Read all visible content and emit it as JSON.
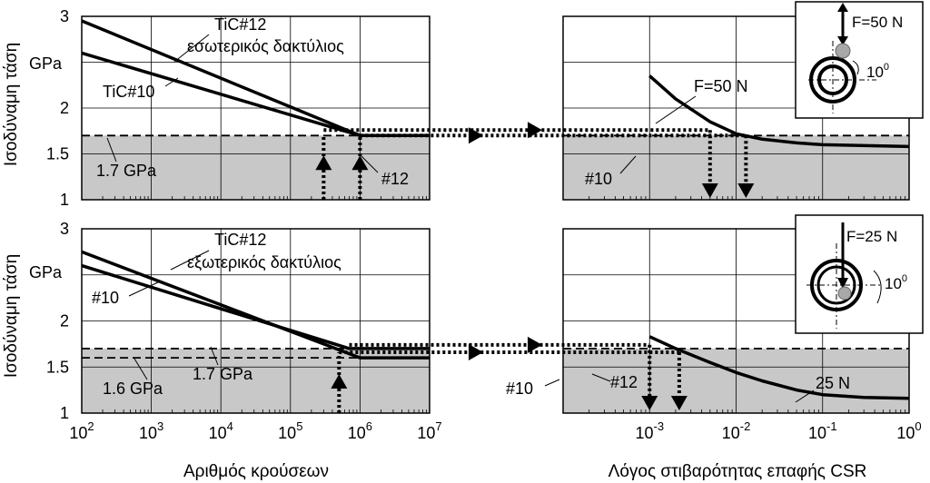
{
  "chart_data": [
    {
      "type": "line",
      "panel": "top-left",
      "xlabel": "",
      "ylabel": "Ισοδύναμη τάση",
      "yunit": "GPa",
      "xscale": "log",
      "xlim": [
        100,
        10000000
      ],
      "ylim": [
        1,
        3
      ],
      "yticks": [
        "1",
        "1.5",
        "2",
        "3"
      ],
      "shaded_band": [
        1,
        1.7
      ],
      "threshold_lines": [
        1.7
      ],
      "series": [
        {
          "name": "TiC#12",
          "points": [
            [
              100,
              2.95
            ],
            [
              1000000,
              1.7
            ],
            [
              10000000,
              1.7
            ]
          ]
        },
        {
          "name": "TiC#10",
          "points": [
            [
              100,
              2.6
            ],
            [
              1000000,
              1.7
            ],
            [
              10000000,
              1.7
            ]
          ]
        }
      ],
      "annotations": {
        "tic12": "TiC#12",
        "tic12_sub": "εσωτερικός δακτύλιος",
        "tic10": "TiC#10",
        "threshold": "1.7 GPa",
        "marker12": "#12"
      },
      "up_arrows_x": [
        300000,
        1000000
      ],
      "arrow_levels": [
        1.7,
        1.76
      ]
    },
    {
      "type": "line",
      "panel": "bottom-left",
      "xlabel": "Αριθμός κρούσεων",
      "ylabel": "Ισοδύναμη τάση",
      "yunit": "GPa",
      "xscale": "log",
      "xlim": [
        100,
        10000000
      ],
      "ylim": [
        1,
        3
      ],
      "yticks": [
        "1",
        "1.5",
        "2",
        "3"
      ],
      "xticks": [
        {
          "base": "10",
          "exp": "2"
        },
        {
          "base": "10",
          "exp": "3"
        },
        {
          "base": "10",
          "exp": "4"
        },
        {
          "base": "10",
          "exp": "5"
        },
        {
          "base": "10",
          "exp": "6"
        },
        {
          "base": "10",
          "exp": "7"
        }
      ],
      "shaded_band": [
        1,
        1.7
      ],
      "threshold_lines": [
        1.6,
        1.7
      ],
      "series": [
        {
          "name": "TiC#12",
          "points": [
            [
              100,
              2.75
            ],
            [
              1000000,
              1.6
            ],
            [
              10000000,
              1.6
            ]
          ]
        },
        {
          "name": "#10",
          "points": [
            [
              100,
              2.6
            ],
            [
              700000,
              1.7
            ],
            [
              10000000,
              1.7
            ]
          ]
        }
      ],
      "annotations": {
        "tic12": "TiC#12",
        "tic12_sub": "εξωτερικός δακτύλιος",
        "tic10": "#10",
        "threshold_low": "1.6 GPa",
        "threshold_high": "1.7 GPa"
      },
      "up_arrows_x": [
        500000
      ],
      "arrow_levels": [
        1.66,
        1.74
      ]
    },
    {
      "type": "line",
      "panel": "top-right",
      "xlabel": "",
      "ylabel": "",
      "xscale": "log",
      "xlim": [
        0.0001,
        1
      ],
      "ylim": [
        1,
        3
      ],
      "shaded_band": [
        1,
        1.7
      ],
      "threshold_lines": [
        1.7
      ],
      "series": [
        {
          "name": "F=50 N",
          "points": [
            [
              0.001,
              2.35
            ],
            [
              0.002,
              2.1
            ],
            [
              0.005,
              1.85
            ],
            [
              0.01,
              1.72
            ],
            [
              0.02,
              1.66
            ],
            [
              0.05,
              1.62
            ],
            [
              0.1,
              1.6
            ],
            [
              1,
              1.58
            ]
          ]
        }
      ],
      "annotations": {
        "curve_label": "F=50 N",
        "m10": "#10"
      },
      "down_arrows_x": [
        0.005,
        0.013
      ]
    },
    {
      "type": "line",
      "panel": "bottom-right",
      "xlabel": "Λόγος στιβαρότητας επαφής CSR",
      "ylabel": "",
      "xscale": "log",
      "xlim": [
        0.0001,
        1
      ],
      "ylim": [
        1,
        3
      ],
      "xticks": [
        {
          "base": "10",
          "exp": "-3"
        },
        {
          "base": "10",
          "exp": "-2"
        },
        {
          "base": "10",
          "exp": "-1"
        },
        {
          "base": "10",
          "exp": "0"
        }
      ],
      "shaded_band": [
        1,
        1.7
      ],
      "threshold_lines": [
        1.7
      ],
      "series": [
        {
          "name": "25 N",
          "points": [
            [
              0.001,
              1.83
            ],
            [
              0.002,
              1.7
            ],
            [
              0.005,
              1.55
            ],
            [
              0.01,
              1.44
            ],
            [
              0.02,
              1.35
            ],
            [
              0.05,
              1.25
            ],
            [
              0.1,
              1.2
            ],
            [
              0.3,
              1.17
            ],
            [
              1,
              1.16
            ]
          ]
        }
      ],
      "annotations": {
        "curve_label": "25 N",
        "m10": "#10",
        "m12": "#12"
      },
      "down_arrows_x": [
        0.001,
        0.0022
      ]
    }
  ],
  "insets": {
    "top": {
      "force": "F=50 N",
      "angle": "10",
      "angle_unit": "0"
    },
    "bottom": {
      "force": "F=25 N",
      "angle": "10",
      "angle_unit": "0"
    }
  }
}
